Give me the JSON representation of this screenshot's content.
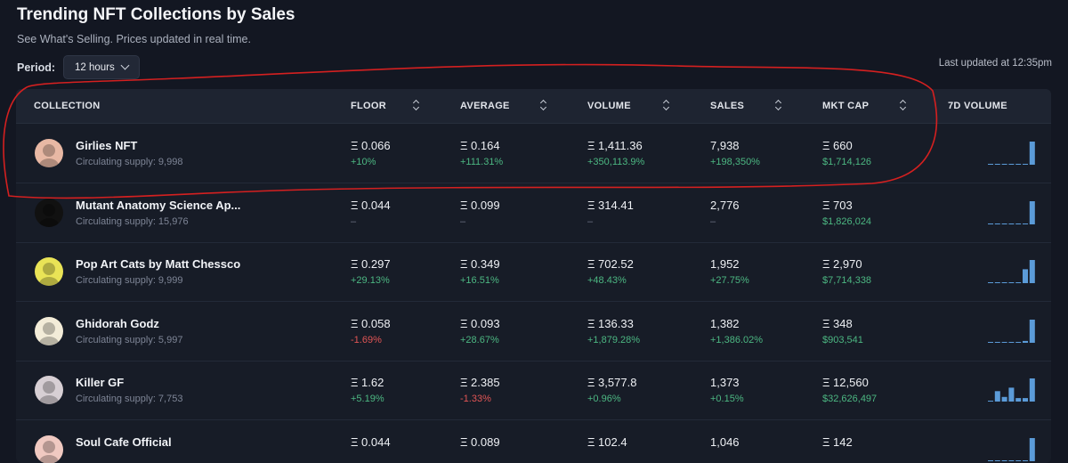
{
  "page": {
    "title": "Trending NFT Collections by Sales",
    "subtitle": "See What's Selling. Prices updated in real time.",
    "period_label": "Period:",
    "period_value": "12 hours",
    "last_updated": "Last updated at 12:35pm"
  },
  "table": {
    "headers": {
      "collection": "COLLECTION",
      "floor": "FLOOR",
      "average": "AVERAGE",
      "volume": "VOLUME",
      "sales": "SALES",
      "mkt_cap": "MKT CAP",
      "volume_7d": "7D VOLUME"
    },
    "rows": [
      {
        "name": "Girlies NFT",
        "supply": "Circulating supply: 9,998",
        "floor": "Ξ 0.066",
        "floor_change": "+10%",
        "floor_dir": "pos",
        "average": "Ξ 0.164",
        "average_change": "+111.31%",
        "average_dir": "pos",
        "volume": "Ξ 1,411.36",
        "volume_change": "+350,113.9%",
        "volume_dir": "pos",
        "sales": "7,938",
        "sales_change": "+198,350%",
        "sales_dir": "pos",
        "mkt_cap": "Ξ 660",
        "mkt_cap_usd": "$1,714,126",
        "spark": [
          0.02,
          0.02,
          0.02,
          0.02,
          0.03,
          0.03,
          1.0
        ],
        "avatar_color": "#e8b8a4",
        "avatar_icon": "girl-portrait-icon"
      },
      {
        "name": "Mutant Anatomy Science Ap...",
        "supply": "Circulating supply: 15,976",
        "floor": "Ξ 0.044",
        "floor_change": "–",
        "floor_dir": "na",
        "average": "Ξ 0.099",
        "average_change": "–",
        "average_dir": "na",
        "volume": "Ξ 314.41",
        "volume_change": "–",
        "volume_dir": "na",
        "sales": "2,776",
        "sales_change": "–",
        "sales_dir": "na",
        "mkt_cap": "Ξ 703",
        "mkt_cap_usd": "$1,826,024",
        "spark": [
          0.02,
          0.02,
          0.02,
          0.02,
          0.02,
          0.03,
          1.0
        ],
        "avatar_color": "#111111",
        "avatar_icon": "ape-skull-icon"
      },
      {
        "name": "Pop Art Cats by Matt Chessco",
        "supply": "Circulating supply: 9,999",
        "floor": "Ξ 0.297",
        "floor_change": "+29.13%",
        "floor_dir": "pos",
        "average": "Ξ 0.349",
        "average_change": "+16.51%",
        "average_dir": "pos",
        "volume": "Ξ 702.52",
        "volume_change": "+48.43%",
        "volume_dir": "pos",
        "sales": "1,952",
        "sales_change": "+27.75%",
        "sales_dir": "pos",
        "mkt_cap": "Ξ 2,970",
        "mkt_cap_usd": "$7,714,338",
        "spark": [
          0.02,
          0.02,
          0.02,
          0.02,
          0.03,
          0.6,
          1.0
        ],
        "avatar_color": "#e9e356",
        "avatar_icon": "cat-icon"
      },
      {
        "name": "Ghidorah Godz",
        "supply": "Circulating supply: 5,997",
        "floor": "Ξ 0.058",
        "floor_change": "-1.69%",
        "floor_dir": "neg",
        "average": "Ξ 0.093",
        "average_change": "+28.67%",
        "average_dir": "pos",
        "volume": "Ξ 136.33",
        "volume_change": "+1,879.28%",
        "volume_dir": "pos",
        "sales": "1,382",
        "sales_change": "+1,386.02%",
        "sales_dir": "pos",
        "mkt_cap": "Ξ 348",
        "mkt_cap_usd": "$903,541",
        "spark": [
          0.02,
          0.02,
          0.02,
          0.02,
          0.03,
          0.08,
          1.0
        ],
        "avatar_color": "#f3ecd8",
        "avatar_icon": "ghidorah-logo-icon"
      },
      {
        "name": "Killer GF",
        "supply": "Circulating supply: 7,753",
        "floor": "Ξ 1.62",
        "floor_change": "+5.19%",
        "floor_dir": "pos",
        "average": "Ξ 2.385",
        "average_change": "-1.33%",
        "average_dir": "neg",
        "volume": "Ξ 3,577.8",
        "volume_change": "+0.96%",
        "volume_dir": "pos",
        "sales": "1,373",
        "sales_change": "+0.15%",
        "sales_dir": "pos",
        "mkt_cap": "Ξ 12,560",
        "mkt_cap_usd": "$32,626,497",
        "spark": [
          0.02,
          0.45,
          0.2,
          0.6,
          0.15,
          0.15,
          1.0
        ],
        "avatar_color": "#d7cfd4",
        "avatar_icon": "anime-girl-icon"
      },
      {
        "name": "Soul Cafe Official",
        "supply": "",
        "floor": "Ξ 0.044",
        "floor_change": "",
        "floor_dir": "na",
        "average": "Ξ 0.089",
        "average_change": "",
        "average_dir": "na",
        "volume": "Ξ 102.4",
        "volume_change": "",
        "volume_dir": "na",
        "sales": "1,046",
        "sales_change": "",
        "sales_dir": "na",
        "mkt_cap": "Ξ 142",
        "mkt_cap_usd": "",
        "spark": [
          0.02,
          0.02,
          0.02,
          0.02,
          0.02,
          0.02,
          1.0
        ],
        "avatar_color": "#f0c9c1",
        "avatar_icon": "cafe-avatar-icon"
      }
    ]
  },
  "colors": {
    "positive": "#4cb782",
    "negative": "#e25555",
    "spark": "#5b9bd8",
    "annotation": "#d42020"
  }
}
